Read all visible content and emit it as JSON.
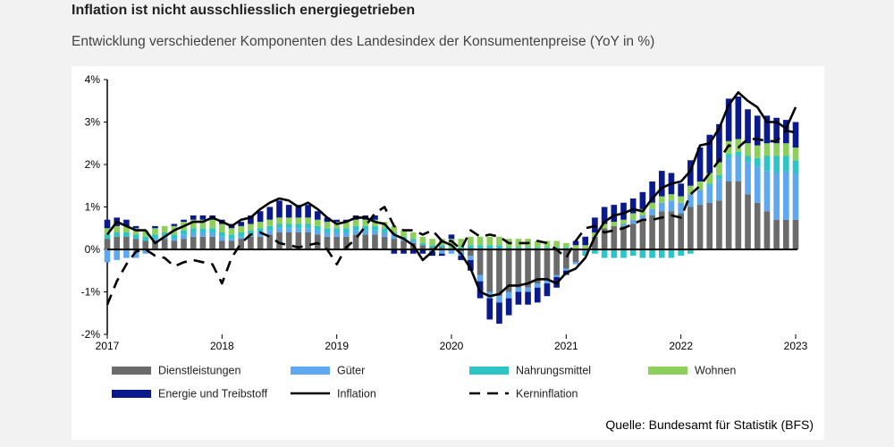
{
  "header": {
    "title": "Inflation ist nicht ausschliesslich energiegetrieben",
    "subtitle": "Entwicklung verschiedener Komponenten des Landesindex der Konsumentenpreise (YoY in %)"
  },
  "footer": {
    "source": "Quelle: Bundesamt für Statistik (BFS)"
  },
  "colors": {
    "Dienstleistungen": "#6b6b6b",
    "Güter": "#5ea8f0",
    "Nahrungsmittel": "#2cc4c4",
    "Wohnen": "#8ccf5a",
    "Energie und Treibstoff": "#0a1a8c",
    "Inflation": "#000000",
    "Kerninflation": "#000000"
  },
  "chart_data": {
    "type": "bar",
    "title": "",
    "xlabel": "",
    "ylabel": "",
    "ylim": [
      -2,
      4
    ],
    "xlim": [
      "2017-01",
      "2023-01"
    ],
    "x_tick_labels": [
      "2017",
      "2018",
      "2019",
      "2020",
      "2021",
      "2022",
      "2023"
    ],
    "y_tick_labels": [
      "-2%",
      "-1%",
      "0%",
      "1%",
      "2%",
      "3%",
      "4%"
    ],
    "y_ticks": [
      -2,
      -1,
      0,
      1,
      2,
      3,
      4
    ],
    "grid": false,
    "legend_position": "bottom",
    "stacked": true,
    "months": [
      "2017-01",
      "2017-02",
      "2017-03",
      "2017-04",
      "2017-05",
      "2017-06",
      "2017-07",
      "2017-08",
      "2017-09",
      "2017-10",
      "2017-11",
      "2017-12",
      "2018-01",
      "2018-02",
      "2018-03",
      "2018-04",
      "2018-05",
      "2018-06",
      "2018-07",
      "2018-08",
      "2018-09",
      "2018-10",
      "2018-11",
      "2018-12",
      "2019-01",
      "2019-02",
      "2019-03",
      "2019-04",
      "2019-05",
      "2019-06",
      "2019-07",
      "2019-08",
      "2019-09",
      "2019-10",
      "2019-11",
      "2019-12",
      "2020-01",
      "2020-02",
      "2020-03",
      "2020-04",
      "2020-05",
      "2020-06",
      "2020-07",
      "2020-08",
      "2020-09",
      "2020-10",
      "2020-11",
      "2020-12",
      "2021-01",
      "2021-02",
      "2021-03",
      "2021-04",
      "2021-05",
      "2021-06",
      "2021-07",
      "2021-08",
      "2021-09",
      "2021-10",
      "2021-11",
      "2021-12",
      "2022-01",
      "2022-02",
      "2022-03",
      "2022-04",
      "2022-05",
      "2022-06",
      "2022-07",
      "2022-08",
      "2022-09",
      "2022-10",
      "2022-11",
      "2022-12",
      "2023-01"
    ],
    "series": [
      {
        "name": "Dienstleistungen",
        "kind": "bar",
        "values": [
          0.25,
          0.3,
          0.3,
          0.25,
          0.2,
          0.2,
          0.25,
          0.2,
          0.25,
          0.3,
          0.3,
          0.3,
          0.2,
          0.2,
          0.25,
          0.3,
          0.3,
          0.35,
          0.4,
          0.4,
          0.4,
          0.4,
          0.35,
          0.3,
          0.3,
          0.3,
          0.35,
          0.35,
          0.35,
          0.3,
          0.25,
          0.2,
          0.15,
          0.1,
          0.05,
          0.05,
          0,
          -0.05,
          -0.15,
          -0.6,
          -1,
          -1.1,
          -1,
          -0.9,
          -0.9,
          -0.8,
          -0.7,
          -0.6,
          -0.45,
          -0.3,
          0,
          0.3,
          0.5,
          0.55,
          0.55,
          0.6,
          0.7,
          0.8,
          0.9,
          0.9,
          0.85,
          1,
          1.05,
          1.1,
          1.15,
          1.6,
          1.6,
          1.3,
          1.1,
          0.9,
          0.7,
          0.7,
          0.7
        ]
      },
      {
        "name": "Güter",
        "kind": "bar",
        "values": [
          -0.3,
          -0.25,
          -0.2,
          -0.2,
          -0.1,
          0.05,
          0.05,
          0.05,
          0.1,
          0.1,
          0.1,
          0.1,
          0.1,
          0.05,
          0.05,
          0.05,
          0.1,
          0.1,
          0.1,
          0.1,
          0.1,
          0.1,
          0.1,
          0.1,
          0.1,
          0.1,
          0.1,
          0.1,
          0.1,
          0.1,
          0.1,
          0.05,
          0.05,
          0,
          -0.05,
          -0.1,
          -0.1,
          -0.1,
          -0.1,
          -0.15,
          -0.15,
          -0.15,
          -0.15,
          -0.1,
          -0.1,
          -0.1,
          -0.1,
          -0.05,
          -0.05,
          -0.05,
          -0.05,
          0,
          0,
          0,
          0.05,
          0.1,
          0.1,
          0.15,
          0.2,
          0.25,
          0.25,
          0.3,
          0.35,
          0.4,
          0.5,
          0.55,
          0.6,
          0.75,
          0.85,
          0.95,
          1.1,
          1.15,
          1.1
        ]
      },
      {
        "name": "Nahrungsmittel",
        "kind": "bar",
        "values": [
          0.1,
          0.1,
          0.1,
          0.1,
          0.1,
          0.1,
          0.1,
          0.1,
          0.1,
          0.1,
          0.1,
          0.1,
          0.1,
          0.1,
          0.1,
          0.1,
          0.1,
          0.1,
          0.1,
          0.1,
          0.1,
          0.1,
          0.1,
          0.1,
          0.1,
          0.1,
          0.1,
          0.1,
          0.1,
          0.1,
          0.05,
          0.05,
          0.05,
          0.05,
          0.05,
          0.05,
          0.05,
          0.05,
          0.1,
          0.1,
          0.1,
          0.1,
          0.05,
          0.05,
          0.05,
          0.05,
          0.05,
          0.05,
          0.05,
          0,
          -0.1,
          -0.1,
          -0.2,
          -0.2,
          -0.2,
          -0.15,
          -0.2,
          -0.2,
          -0.2,
          -0.2,
          -0.15,
          -0.1,
          0,
          0.05,
          0.1,
          0.1,
          0.1,
          0.15,
          0.2,
          0.35,
          0.4,
          0.35,
          0.3
        ]
      },
      {
        "name": "Wohnen",
        "kind": "bar",
        "values": [
          0.15,
          0.15,
          0.15,
          0.15,
          0.15,
          0.15,
          0.15,
          0.2,
          0.2,
          0.2,
          0.2,
          0.2,
          0.2,
          0.15,
          0.15,
          0.15,
          0.15,
          0.15,
          0.15,
          0.15,
          0.15,
          0.15,
          0.15,
          0.15,
          0.15,
          0.15,
          0.15,
          0.15,
          0.15,
          0.15,
          0.15,
          0.15,
          0.15,
          0.15,
          0.15,
          0.15,
          0.2,
          0.2,
          0.2,
          0.2,
          0.2,
          0.2,
          0.2,
          0.2,
          0.2,
          0.15,
          0.15,
          0.15,
          0.1,
          0.1,
          0.1,
          0.1,
          0.1,
          0.1,
          0.1,
          0.15,
          0.15,
          0.15,
          0.15,
          0.15,
          0.15,
          0.2,
          0.2,
          0.25,
          0.3,
          0.3,
          0.3,
          0.3,
          0.3,
          0.3,
          0.3,
          0.3,
          0.3
        ]
      },
      {
        "name": "Energie und Treibstoff",
        "kind": "bar",
        "values": [
          0.2,
          0.2,
          0.15,
          0.05,
          0,
          0.05,
          0,
          0.05,
          0.05,
          0.1,
          0.1,
          0.1,
          0.1,
          0.1,
          0.1,
          0.2,
          0.25,
          0.3,
          0.4,
          0.3,
          0.3,
          0.3,
          0.2,
          0.1,
          0.05,
          0.05,
          0.1,
          0.1,
          0.1,
          0,
          -0.1,
          -0.1,
          -0.1,
          -0.1,
          -0.1,
          -0.05,
          0.1,
          -0.1,
          -0.25,
          -0.4,
          -0.5,
          -0.5,
          -0.4,
          -0.3,
          -0.3,
          -0.35,
          -0.3,
          -0.25,
          -0.1,
          0.1,
          0.2,
          0.35,
          0.4,
          0.4,
          0.4,
          0.35,
          0.4,
          0.5,
          0.6,
          0.5,
          0.3,
          0.6,
          0.8,
          0.9,
          0.9,
          1.0,
          1.0,
          0.8,
          0.7,
          0.65,
          0.6,
          0.55,
          0.6
        ]
      },
      {
        "name": "Inflation",
        "kind": "line",
        "values": [
          0.35,
          0.65,
          0.55,
          0.45,
          0.45,
          0.15,
          0.3,
          0.45,
          0.55,
          0.65,
          0.65,
          0.75,
          0.65,
          0.55,
          0.7,
          0.75,
          0.95,
          1.1,
          1.2,
          1.15,
          1.0,
          1.1,
          0.95,
          0.75,
          0.6,
          0.65,
          0.75,
          0.75,
          0.65,
          0.6,
          0.35,
          0.25,
          0.1,
          -0.25,
          -0.05,
          0.2,
          0.1,
          -0.1,
          -0.45,
          -1.0,
          -1.1,
          -1.05,
          -0.85,
          -0.85,
          -0.8,
          -0.7,
          -0.7,
          -0.8,
          -0.55,
          -0.45,
          -0.2,
          0.3,
          0.65,
          0.8,
          0.85,
          0.95,
          0.9,
          1.2,
          1.45,
          1.55,
          1.6,
          1.85,
          2.45,
          2.5,
          2.85,
          3.4,
          3.7,
          3.5,
          3.35,
          3.0,
          3.0,
          2.85,
          3.35
        ]
      },
      {
        "name": "Kerninflation",
        "kind": "line",
        "dashed": true,
        "values": [
          -1.3,
          -0.75,
          -0.35,
          -0.05,
          0,
          -0.15,
          -0.2,
          -0.4,
          -0.3,
          -0.25,
          -0.3,
          -0.35,
          -0.8,
          -0.2,
          0.15,
          0.35,
          0.4,
          0.3,
          0.15,
          0.1,
          0.05,
          0.1,
          0.15,
          0.0,
          -0.35,
          0.05,
          0.25,
          0.55,
          0.85,
          1.0,
          0.55,
          0.45,
          0.45,
          0.35,
          0.45,
          0.2,
          0.2,
          0.0,
          0.45,
          0.3,
          0.35,
          0.3,
          0.15,
          0.15,
          0.15,
          0.2,
          0.15,
          0.0,
          -0.2,
          0.2,
          0.5,
          0.55,
          0.4,
          0.45,
          0.5,
          0.6,
          0.7,
          0.7,
          0.75,
          0.8,
          0.75,
          1.3,
          1.5,
          1.8,
          2.1,
          2.45,
          2.4,
          2.6,
          2.6,
          2.55,
          2.55,
          2.8,
          2.75
        ]
      }
    ]
  }
}
